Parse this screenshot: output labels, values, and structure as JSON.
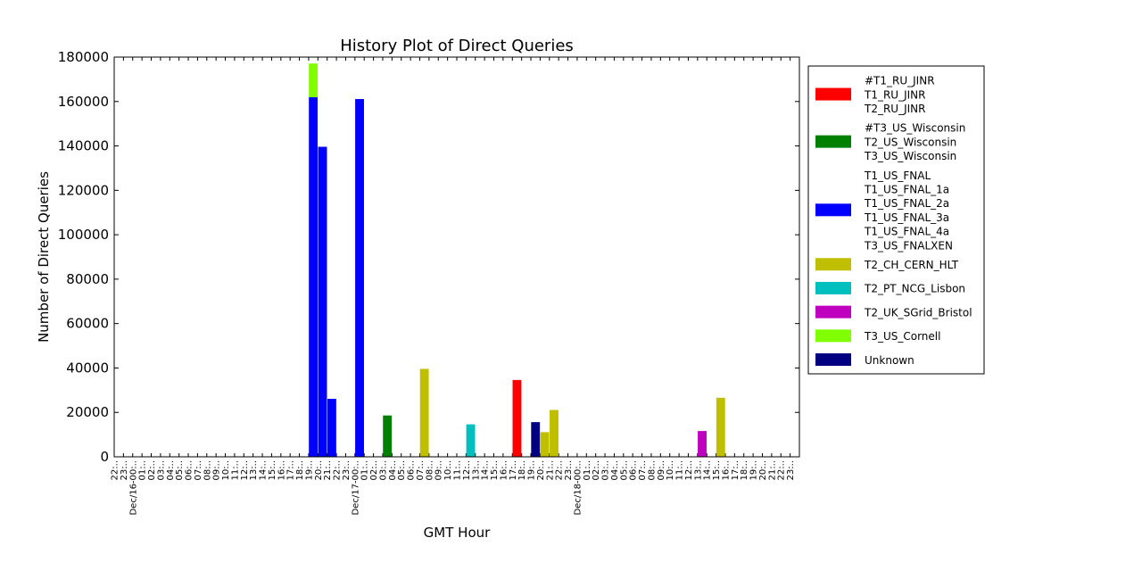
{
  "chart_data": {
    "type": "bar",
    "stacked": true,
    "title": "History Plot of Direct Queries",
    "xlabel": "GMT Hour",
    "ylabel": "Number of Direct Queries",
    "ylim": [
      0,
      180000
    ],
    "yticks": [
      0,
      20000,
      40000,
      60000,
      80000,
      100000,
      120000,
      140000,
      160000,
      180000
    ],
    "ytick_labels": [
      "0",
      "20000",
      "40000",
      "60000",
      "80000",
      "100000",
      "120000",
      "140000",
      "160000",
      "180000"
    ],
    "grid": false,
    "legend_position": "right",
    "categories": [
      "22:..",
      "23:..",
      "Dec/16-00:..",
      "01:..",
      "02:..",
      "03:..",
      "04:..",
      "05:..",
      "06:..",
      "07:..",
      "08:..",
      "09:..",
      "10:..",
      "11:..",
      "12:..",
      "13:..",
      "14:..",
      "15:..",
      "16:..",
      "17:..",
      "18:..",
      "19:..",
      "20:..",
      "21:..",
      "22:..",
      "23:..",
      "Dec/17-00:..",
      "01:..",
      "02:..",
      "03:..",
      "04:..",
      "05:..",
      "06:..",
      "07:..",
      "08:..",
      "09:..",
      "10:..",
      "11:..",
      "12:..",
      "13:..",
      "14:..",
      "15:..",
      "16:..",
      "17:..",
      "18:..",
      "19:..",
      "20:..",
      "21:..",
      "22:..",
      "23:..",
      "Dec/18-00:..",
      "01:..",
      "02:..",
      "03:..",
      "04:..",
      "05:..",
      "06:..",
      "07:..",
      "08:..",
      "09:..",
      "10:..",
      "11:..",
      "12:..",
      "13:..",
      "14:..",
      "15:..",
      "16:..",
      "17:..",
      "18:..",
      "19:..",
      "20:..",
      "21:..",
      "22:..",
      "23:.."
    ],
    "series": [
      {
        "name": "#T1_RU_JINR\nT1_RU_JINR\nT2_RU_JINR",
        "color": "#ff0000",
        "points": [
          {
            "index": 43,
            "value": 34500
          }
        ]
      },
      {
        "name": "#T3_US_Wisconsin\nT2_US_Wisconsin\nT3_US_Wisconsin",
        "color": "#008000",
        "points": [
          {
            "index": 29,
            "value": 18500
          }
        ]
      },
      {
        "name": "T1_US_FNAL\nT1_US_FNAL_1a\nT1_US_FNAL_2a\nT1_US_FNAL_3a\nT1_US_FNAL_4a\nT3_US_FNALXEN",
        "color": "#0000ff",
        "points": [
          {
            "index": 21,
            "value": 162000
          },
          {
            "index": 22,
            "value": 139500
          },
          {
            "index": 23,
            "value": 26000
          },
          {
            "index": 26,
            "value": 161000
          }
        ]
      },
      {
        "name": "T2_CH_CERN_HLT",
        "color": "#bfbf00",
        "points": [
          {
            "index": 33,
            "value": 39500
          },
          {
            "index": 46,
            "value": 11000
          },
          {
            "index": 47,
            "value": 21000
          },
          {
            "index": 65,
            "value": 26500
          }
        ]
      },
      {
        "name": "T2_PT_NCG_Lisbon",
        "color": "#00bfbf",
        "points": [
          {
            "index": 38,
            "value": 14500
          }
        ]
      },
      {
        "name": "T2_UK_SGrid_Bristol",
        "color": "#bf00bf",
        "points": [
          {
            "index": 63,
            "value": 11500
          }
        ]
      },
      {
        "name": "T3_US_Cornell",
        "color": "#7fff00",
        "points": [
          {
            "index": 21,
            "value": 15000
          }
        ]
      },
      {
        "name": "Unknown",
        "color": "#000080",
        "points": [
          {
            "index": 45,
            "value": 15500
          }
        ]
      }
    ]
  }
}
